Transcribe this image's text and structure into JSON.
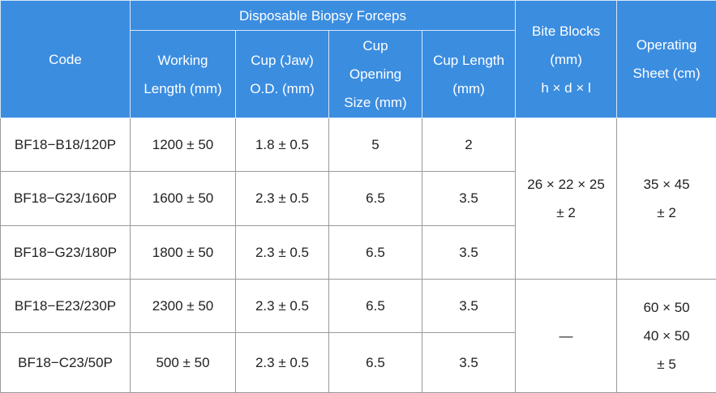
{
  "table": {
    "group_header": "Disposable Biopsy Forceps",
    "headers": {
      "code": "Code",
      "forceps": [
        [
          "Working",
          "Length (mm)"
        ],
        [
          "Cup (Jaw)",
          "O.D. (mm)"
        ],
        [
          "Cup",
          "Opening",
          "Size (mm)"
        ],
        [
          "Cup Length",
          "(mm)"
        ]
      ],
      "bite_blocks": [
        "Bite Blocks",
        "(mm)",
        "h × d × l"
      ],
      "operating_sheet": [
        "Operating",
        "Sheet (cm)"
      ]
    },
    "rows": [
      [
        "BF18−B18/120P",
        "1200 ± 50",
        "1.8 ± 0.5",
        "5",
        "2"
      ],
      [
        "BF18−G23/160P",
        "1600 ± 50",
        "2.3 ± 0.5",
        "6.5",
        "3.5"
      ],
      [
        "BF18−G23/180P",
        "1800 ± 50",
        "2.3 ± 0.5",
        "6.5",
        "3.5"
      ],
      [
        "BF18−E23/230P",
        "2300 ± 50",
        "2.3 ± 0.5",
        "6.5",
        "3.5"
      ],
      [
        "BF18−C23/50P",
        "500 ± 50",
        "2.3 ± 0.5",
        "6.5",
        "3.5"
      ]
    ],
    "bite_blocks": [
      [
        "26 × 22 × 25",
        "± 2"
      ],
      [
        "—"
      ]
    ],
    "operating_sheet": [
      [
        "35 × 45",
        "± 2"
      ],
      [
        "60 × 50",
        "40 × 50",
        "± 5"
      ]
    ]
  }
}
